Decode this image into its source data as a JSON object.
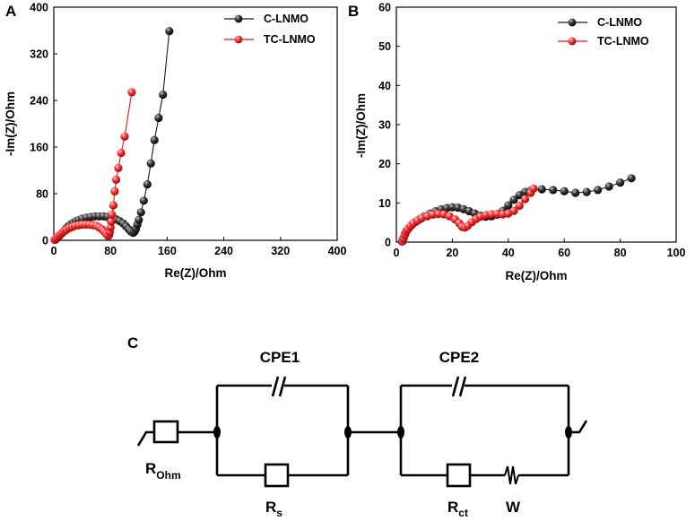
{
  "chart_data": [
    {
      "panel": "A",
      "type": "scatter",
      "xlabel": "Re(Z)/Ohm",
      "ylabel": "-Im(Z)/Ohm",
      "xlim": [
        0,
        400
      ],
      "ylim": [
        0,
        400
      ],
      "xticks": [
        0,
        80,
        160,
        240,
        320,
        400
      ],
      "yticks": [
        0,
        80,
        160,
        240,
        320,
        400
      ],
      "legend_position": "top-right",
      "series": [
        {
          "name": "C-LNMO",
          "color": "#1a1a1a",
          "points": [
            [
              2,
              1
            ],
            [
              5,
              4
            ],
            [
              8,
              8
            ],
            [
              11,
              12
            ],
            [
              14,
              16
            ],
            [
              17,
              20
            ],
            [
              20,
              24
            ],
            [
              23,
              27
            ],
            [
              27,
              30
            ],
            [
              31,
              33
            ],
            [
              35,
              35
            ],
            [
              40,
              37
            ],
            [
              46,
              39
            ],
            [
              52,
              40
            ],
            [
              58,
              41
            ],
            [
              64,
              41
            ],
            [
              70,
              41
            ],
            [
              76,
              40
            ],
            [
              82,
              38
            ],
            [
              88,
              36
            ],
            [
              93,
              33
            ],
            [
              98,
              29
            ],
            [
              102,
              24
            ],
            [
              106,
              19
            ],
            [
              109,
              15
            ],
            [
              112,
              13
            ],
            [
              114,
              15
            ],
            [
              116,
              20
            ],
            [
              118,
              27
            ],
            [
              120,
              35
            ],
            [
              123,
              48
            ],
            [
              127,
              68
            ],
            [
              132,
              96
            ],
            [
              137,
              132
            ],
            [
              142,
              172
            ],
            [
              148,
              210
            ],
            [
              154,
              250
            ],
            [
              163,
              359
            ]
          ]
        },
        {
          "name": "TC-LNMO",
          "color": "#e8161c",
          "points": [
            [
              1,
              1
            ],
            [
              3,
              4
            ],
            [
              6,
              7
            ],
            [
              9,
              10
            ],
            [
              12,
              13
            ],
            [
              15,
              16
            ],
            [
              18,
              18
            ],
            [
              22,
              21
            ],
            [
              26,
              23
            ],
            [
              30,
              25
            ],
            [
              35,
              26
            ],
            [
              40,
              27
            ],
            [
              45,
              27
            ],
            [
              50,
              27
            ],
            [
              55,
              26
            ],
            [
              60,
              25
            ],
            [
              64,
              22
            ],
            [
              68,
              19
            ],
            [
              71,
              15
            ],
            [
              74,
              11
            ],
            [
              76,
              8
            ],
            [
              78,
              9
            ],
            [
              79,
              14
            ],
            [
              80,
              22
            ],
            [
              81,
              32
            ],
            [
              82,
              44
            ],
            [
              84,
              60
            ],
            [
              86,
              84
            ],
            [
              88,
              104
            ],
            [
              91,
              124
            ],
            [
              95,
              150
            ],
            [
              100,
              178
            ],
            [
              110,
              254
            ]
          ]
        }
      ]
    },
    {
      "panel": "B",
      "type": "scatter",
      "xlabel": "Re(Z)/Ohm",
      "ylabel": "-Im(Z)/Ohm",
      "xlim": [
        0,
        100
      ],
      "ylim": [
        0,
        60
      ],
      "xticks": [
        0,
        20,
        40,
        60,
        80,
        100
      ],
      "yticks": [
        0,
        10,
        20,
        30,
        40,
        50,
        60
      ],
      "legend_position": "top-right",
      "series": [
        {
          "name": "C-LNMO",
          "color": "#1a1a1a",
          "points": [
            [
              2.0,
              0.2
            ],
            [
              2.5,
              1.0
            ],
            [
              3.0,
              2.0
            ],
            [
              3.5,
              2.8
            ],
            [
              4.5,
              3.6
            ],
            [
              5.5,
              4.4
            ],
            [
              7,
              5.2
            ],
            [
              8.5,
              5.9
            ],
            [
              10,
              6.6
            ],
            [
              12,
              7.3
            ],
            [
              14,
              7.9
            ],
            [
              16,
              8.4
            ],
            [
              18,
              8.7
            ],
            [
              20,
              8.9
            ],
            [
              22,
              8.8
            ],
            [
              24,
              8.4
            ],
            [
              26,
              7.9
            ],
            [
              28,
              7.3
            ],
            [
              30,
              6.8
            ],
            [
              32,
              6.5
            ],
            [
              34,
              6.6
            ],
            [
              36,
              7.0
            ],
            [
              38,
              8.0
            ],
            [
              40,
              9.4
            ],
            [
              42,
              10.8
            ],
            [
              44,
              12.0
            ],
            [
              46,
              12.8
            ],
            [
              48,
              13.2
            ],
            [
              52,
              13.5
            ],
            [
              56,
              13.3
            ],
            [
              60,
              13.0
            ],
            [
              64,
              12.6
            ],
            [
              68,
              12.8
            ],
            [
              72,
              13.3
            ],
            [
              76,
              14.2
            ],
            [
              80,
              15.2
            ],
            [
              84,
              16.3
            ]
          ]
        },
        {
          "name": "TC-LNMO",
          "color": "#e8161c",
          "points": [
            [
              2.2,
              0.2
            ],
            [
              2.6,
              0.9
            ],
            [
              3.0,
              1.8
            ],
            [
              3.5,
              2.6
            ],
            [
              4,
              3.3
            ],
            [
              5,
              4.1
            ],
            [
              6,
              4.8
            ],
            [
              7.5,
              5.5
            ],
            [
              9,
              6.1
            ],
            [
              11,
              6.6
            ],
            [
              13,
              7.0
            ],
            [
              15,
              7.2
            ],
            [
              17,
              7.1
            ],
            [
              19,
              6.6
            ],
            [
              21,
              5.8
            ],
            [
              22.5,
              4.8
            ],
            [
              23.5,
              3.9
            ],
            [
              24.5,
              3.7
            ],
            [
              25.5,
              4.2
            ],
            [
              27,
              5.1
            ],
            [
              28.5,
              5.9
            ],
            [
              30,
              6.5
            ],
            [
              32,
              6.9
            ],
            [
              34,
              7.1
            ],
            [
              36,
              7.2
            ],
            [
              38,
              7.1
            ],
            [
              40,
              7.3
            ],
            [
              42,
              8.0
            ],
            [
              44,
              9.3
            ],
            [
              46,
              11.0
            ],
            [
              48,
              12.6
            ],
            [
              49,
              13.7
            ]
          ]
        }
      ]
    }
  ],
  "circuit": {
    "panel": "C",
    "elements": {
      "cpe1": "CPE1",
      "cpe2": "CPE2",
      "rohm_main": "R",
      "rohm_sub": "Ohm",
      "rs_main": "R",
      "rs_sub": "s",
      "rct_main": "R",
      "rct_sub": "ct",
      "w": "W"
    }
  }
}
